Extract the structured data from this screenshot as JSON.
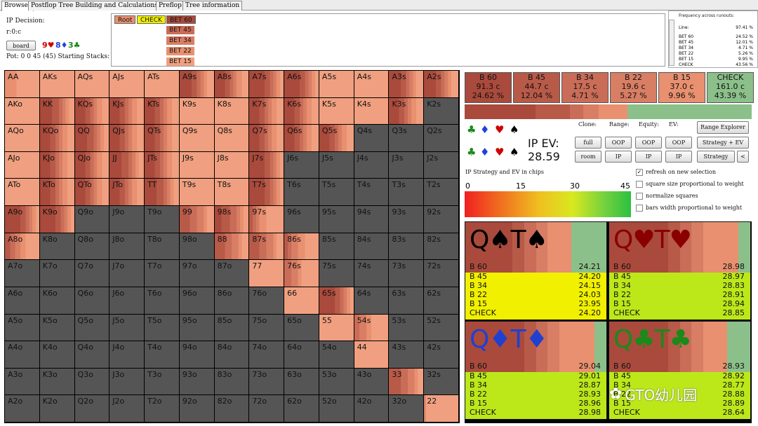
{
  "tabs": [
    "Browser",
    "Postflop Tree Building and Calculations",
    "Preflop",
    "Tree information"
  ],
  "decision": {
    "title": "IP Decision:",
    "runout": "r:0:c",
    "board_button": "board",
    "board_cards": [
      {
        "text": "9♥",
        "color": "#d00000"
      },
      {
        "text": "8♦",
        "color": "#2040e0"
      },
      {
        "text": "3♣",
        "color": "#1a8a1a"
      }
    ],
    "pot_line": "Pot: 0 0 45 (45) Starting Stacks:"
  },
  "tree": {
    "root": "Root",
    "check": "CHECK",
    "bets": [
      "BET 60",
      "BET 45",
      "BET 34",
      "BET 22",
      "BET 15"
    ]
  },
  "frequency": {
    "title": "Frequency across runouts:",
    "line_label": "Line:",
    "line_value": "97.41 %",
    "rows": [
      {
        "label": "BET 60",
        "value": "24.52 %"
      },
      {
        "label": "BET 45",
        "value": "12.01 %"
      },
      {
        "label": "BET 34",
        "value": "4.71 %"
      },
      {
        "label": "BET 22",
        "value": "5.26 %"
      },
      {
        "label": "BET 15",
        "value": "9.95 %"
      },
      {
        "label": "CHECK",
        "value": "43.56 %"
      }
    ]
  },
  "actions": [
    {
      "name": "B 60",
      "combos": "91.3 c",
      "pct": "24.62 %",
      "color": "#a94a3c",
      "freq": 24.62
    },
    {
      "name": "B 45",
      "combos": "44.7 c",
      "pct": "12.04 %",
      "color": "#b85a48",
      "freq": 12.04
    },
    {
      "name": "B 34",
      "combos": "17.5 c",
      "pct": "4.71 %",
      "color": "#c96c58",
      "freq": 4.71
    },
    {
      "name": "B 22",
      "combos": "19.6 c",
      "pct": "5.27 %",
      "color": "#d87e64",
      "freq": 5.27
    },
    {
      "name": "B 15",
      "combos": "37.0 c",
      "pct": "9.96 %",
      "color": "#e8906f",
      "freq": 9.96
    },
    {
      "name": "CHECK",
      "combos": "161.0 c",
      "pct": "43.39 %",
      "color": "#8cc08a",
      "freq": 43.39
    }
  ],
  "controls": {
    "ip_ev_label": "IP EV:",
    "ip_ev_value": "28.59",
    "clone_label": "Clone:",
    "range_label": "Range:",
    "equity_label": "Equity:",
    "ev_label": "EV:",
    "buttons": {
      "full": "full",
      "room": "room",
      "oop": "OOP",
      "ip": "IP",
      "range_explorer": "Range Explorer",
      "strategy_ev": "Strategy + EV",
      "strategy": "Strategy",
      "arrow": "<"
    },
    "suits": [
      {
        "s": "♣",
        "c": "#1a8a1a"
      },
      {
        "s": "♦",
        "c": "#2040e0"
      },
      {
        "s": "♥",
        "c": "#d00000"
      },
      {
        "s": "♠",
        "c": "#000000"
      }
    ],
    "scale_title": "IP Strategy and EV in chips",
    "scale_ticks": [
      "0",
      "15",
      "30",
      "45"
    ],
    "checkboxes": [
      {
        "label": "refresh on new selection",
        "checked": true
      },
      {
        "label": "square size proportional to weight",
        "checked": false
      },
      {
        "label": "normalize squares",
        "checked": false
      },
      {
        "label": "bars width proportional to weight",
        "checked": false
      }
    ]
  },
  "grid": {
    "ranks": [
      "A",
      "K",
      "Q",
      "J",
      "T",
      "9",
      "8",
      "7",
      "6",
      "5",
      "4",
      "3",
      "2"
    ],
    "cells": {
      "AA": [
        0.0,
        0.0,
        0.0,
        0.0,
        0.0,
        0.25,
        0.5
      ],
      "AKs": [
        0.0,
        0.0,
        0.0,
        0.0,
        0.0,
        0.0,
        0.9
      ],
      "AQs": [
        0.0,
        0.0,
        0.0,
        0.0,
        0.0,
        0.0,
        0.9
      ],
      "AJs": [
        0.0,
        0.0,
        0.0,
        0.0,
        0.0,
        0.0,
        0.9
      ],
      "ATs": [
        0.0,
        0.0,
        0.0,
        0.0,
        0.0,
        0.0,
        0.9
      ],
      "A9s": [
        0.0,
        0.35,
        0.15,
        0.1,
        0.1,
        0.1,
        0.2
      ],
      "A8s": [
        0.0,
        0.3,
        0.15,
        0.1,
        0.1,
        0.15,
        0.2
      ],
      "A7s": [
        0.0,
        0.45,
        0.15,
        0.1,
        0.1,
        0.1,
        0.1
      ],
      "A6s": [
        0.0,
        0.45,
        0.15,
        0.1,
        0.1,
        0.1,
        0.1
      ],
      "A5s": [
        0.0,
        0.0,
        0.0,
        0.0,
        0.0,
        0.0,
        0.9
      ],
      "A4s": [
        0.0,
        0.0,
        0.0,
        0.0,
        0.0,
        0.0,
        0.9
      ],
      "A3s": [
        0.0,
        0.35,
        0.15,
        0.1,
        0.1,
        0.1,
        0.2
      ],
      "A2s": [
        0.0,
        0.35,
        0.15,
        0.1,
        0.1,
        0.1,
        0.2
      ],
      "AKo": [
        0.0,
        0.0,
        0.0,
        0.0,
        0.0,
        0.0,
        0.9
      ],
      "KK": [
        0.0,
        0.35,
        0.2,
        0.1,
        0.1,
        0.1,
        0.15
      ],
      "KQs": [
        0.0,
        0.3,
        0.15,
        0.1,
        0.1,
        0.15,
        0.2
      ],
      "KJs": [
        0.0,
        0.3,
        0.15,
        0.1,
        0.1,
        0.15,
        0.2
      ],
      "KTs": [
        0.0,
        0.3,
        0.15,
        0.1,
        0.1,
        0.15,
        0.2
      ],
      "K9s": [
        0.0,
        0.0,
        0.0,
        0.0,
        0.0,
        0.0,
        0.9
      ],
      "K8s": [
        0.0,
        0.0,
        0.0,
        0.0,
        0.0,
        0.0,
        0.9
      ],
      "K7s": [
        0.0,
        0.3,
        0.15,
        0.1,
        0.1,
        0.15,
        0.2
      ],
      "K6s": [
        0.0,
        0.3,
        0.15,
        0.1,
        0.1,
        0.15,
        0.2
      ],
      "K5s": [
        0.0,
        0.0,
        0.0,
        0.0,
        0.0,
        0.0,
        0.9
      ],
      "K4s": [
        0.0,
        0.0,
        0.0,
        0.0,
        0.0,
        0.0,
        0.9
      ],
      "K3s": [
        0.0,
        0.3,
        0.15,
        0.1,
        0.1,
        0.15,
        0.2
      ],
      "K2s": [
        0.1,
        0.0,
        0.0,
        0.0,
        0.0,
        0.0,
        0.0
      ],
      "AQo": [
        0.0,
        0.0,
        0.0,
        0.0,
        0.0,
        0.0,
        0.9
      ],
      "KQo": [
        0.0,
        0.3,
        0.15,
        0.1,
        0.1,
        0.15,
        0.2
      ],
      "QQ": [
        0.0,
        0.35,
        0.2,
        0.1,
        0.1,
        0.1,
        0.15
      ],
      "QJs": [
        0.0,
        0.3,
        0.15,
        0.1,
        0.1,
        0.15,
        0.2
      ],
      "QTs": [
        0.0,
        0.3,
        0.15,
        0.1,
        0.1,
        0.15,
        0.2
      ],
      "Q9s": [
        0.0,
        0.0,
        0.0,
        0.0,
        0.0,
        0.0,
        0.9
      ],
      "Q8s": [
        0.0,
        0.0,
        0.0,
        0.0,
        0.0,
        0.0,
        0.9
      ],
      "Q7s": [
        0.0,
        0.3,
        0.15,
        0.1,
        0.1,
        0.15,
        0.2
      ],
      "Q6s": [
        0.0,
        0.3,
        0.15,
        0.1,
        0.1,
        0.15,
        0.2
      ],
      "Q5s": [
        0.0,
        0.3,
        0.15,
        0.1,
        0.1,
        0.15,
        0.2
      ],
      "AJo": [
        0.0,
        0.0,
        0.0,
        0.0,
        0.0,
        0.0,
        0.9
      ],
      "KJo": [
        0.0,
        0.3,
        0.15,
        0.1,
        0.1,
        0.15,
        0.2
      ],
      "QJo": [
        0.0,
        0.3,
        0.15,
        0.1,
        0.1,
        0.15,
        0.2
      ],
      "JJ": [
        0.0,
        0.35,
        0.2,
        0.1,
        0.1,
        0.1,
        0.15
      ],
      "JTs": [
        0.0,
        0.3,
        0.15,
        0.1,
        0.1,
        0.15,
        0.2
      ],
      "J9s": [
        0.0,
        0.0,
        0.0,
        0.0,
        0.0,
        0.0,
        0.9
      ],
      "J8s": [
        0.0,
        0.0,
        0.0,
        0.0,
        0.0,
        0.0,
        0.9
      ],
      "J7s": [
        0.0,
        0.45,
        0.15,
        0.1,
        0.1,
        0.1,
        0.1
      ],
      "ATo": [
        0.0,
        0.0,
        0.0,
        0.0,
        0.0,
        0.0,
        0.9
      ],
      "KTo": [
        0.0,
        0.3,
        0.15,
        0.1,
        0.1,
        0.15,
        0.2
      ],
      "QTo": [
        0.0,
        0.3,
        0.15,
        0.1,
        0.1,
        0.15,
        0.2
      ],
      "JTo": [
        0.0,
        0.3,
        0.15,
        0.1,
        0.1,
        0.15,
        0.2
      ],
      "TT": [
        0.0,
        0.35,
        0.2,
        0.1,
        0.1,
        0.1,
        0.15
      ],
      "T9s": [
        0.0,
        0.0,
        0.0,
        0.0,
        0.0,
        0.0,
        0.9
      ],
      "T8s": [
        0.0,
        0.0,
        0.0,
        0.0,
        0.0,
        0.0,
        0.9
      ],
      "T7s": [
        0.0,
        0.45,
        0.15,
        0.1,
        0.1,
        0.1,
        0.1
      ],
      "A9o": [
        0.0,
        0.45,
        0.15,
        0.1,
        0.1,
        0.1,
        0.1
      ],
      "K9o": [
        0.0,
        0.45,
        0.15,
        0.1,
        0.1,
        0.1,
        0.1
      ],
      "99": [
        0.0,
        0.0,
        0.3,
        0.2,
        0.2,
        0.1,
        0.2
      ],
      "98s": [
        0.0,
        0.2,
        0.25,
        0.2,
        0.1,
        0.1,
        0.15
      ],
      "97s": [
        0.0,
        0.0,
        0.1,
        0.1,
        0.1,
        0.2,
        0.5
      ],
      "A8o": [
        0.0,
        0.0,
        0.15,
        0.15,
        0.15,
        0.15,
        0.4
      ],
      "88": [
        0.0,
        0.0,
        0.3,
        0.2,
        0.2,
        0.1,
        0.2
      ],
      "87s": [
        0.0,
        0.0,
        0.3,
        0.2,
        0.2,
        0.1,
        0.2
      ],
      "86s": [
        0.0,
        0.0,
        0.1,
        0.1,
        0.2,
        0.2,
        0.4
      ],
      "77": [
        0.0,
        0.0,
        0.0,
        0.0,
        0.0,
        0.0,
        0.9
      ],
      "76s": [
        0.0,
        0.0,
        0.0,
        0.2,
        0.2,
        0.1,
        0.5
      ],
      "66": [
        0.0,
        0.0,
        0.0,
        0.0,
        0.0,
        0.0,
        0.9
      ],
      "65s": [
        0.0,
        0.45,
        0.15,
        0.1,
        0.1,
        0.1,
        0.1
      ],
      "55": [
        0.0,
        0.0,
        0.0,
        0.0,
        0.0,
        0.0,
        0.9
      ],
      "54s": [
        0.0,
        0.0,
        0.0,
        0.15,
        0.2,
        0.15,
        0.5
      ],
      "44": [
        0.0,
        0.0,
        0.0,
        0.0,
        0.0,
        0.0,
        0.9
      ],
      "33": [
        0.0,
        0.0,
        0.35,
        0.2,
        0.2,
        0.1,
        0.15
      ],
      "22": [
        0.0,
        0.0,
        0.0,
        0.0,
        0.05,
        0.0,
        0.85
      ]
    }
  },
  "hands": [
    {
      "cards": "Q♠T♠",
      "color": "#000000",
      "cardbg": [
        "#a94a3c",
        "#a94a3c",
        "#a94a3c",
        "#a94a3c",
        "#b85a48",
        "#c96c58",
        "#d87e64",
        "#e8906f",
        "#e8906f",
        "#8cc08a",
        "#8cc08a",
        "#8cc08a"
      ],
      "best": "B 60",
      "best_ev": "24.21",
      "rowbg": "#f0f000",
      "rows": [
        {
          "a": "B 45",
          "v": "24.20"
        },
        {
          "a": "B 34",
          "v": "24.15"
        },
        {
          "a": "B 22",
          "v": "24.03"
        },
        {
          "a": "B 15",
          "v": "23.95"
        },
        {
          "a": "CHECK",
          "v": "24.20"
        }
      ]
    },
    {
      "cards": "Q♥T♥",
      "color": "#8a0000",
      "cardbg": [
        "#a94a3c",
        "#a94a3c",
        "#a94a3c",
        "#a94a3c",
        "#a94a3c",
        "#b85a48",
        "#c96c58",
        "#d87e64",
        "#e8906f",
        "#e8906f",
        "#e8906f",
        "#8cc08a"
      ],
      "best": "B 60",
      "best_ev": "28.98",
      "rowbg": "#bce81a",
      "rows": [
        {
          "a": "B 45",
          "v": "28.97"
        },
        {
          "a": "B 34",
          "v": "28.83"
        },
        {
          "a": "B 22",
          "v": "28.91"
        },
        {
          "a": "B 15",
          "v": "28.94"
        },
        {
          "a": "CHECK",
          "v": "28.85"
        }
      ]
    },
    {
      "cards": "Q♦T♦",
      "color": "#2040d0",
      "cardbg": [
        "#a94a3c",
        "#a94a3c",
        "#a94a3c",
        "#a94a3c",
        "#a94a3c",
        "#b85a48",
        "#c96c58",
        "#d87e64",
        "#e8906f",
        "#e8906f",
        "#e8906f",
        "#8cc08a"
      ],
      "best": "B 60",
      "best_ev": "29.04",
      "rowbg": "#bce81a",
      "rows": [
        {
          "a": "B 45",
          "v": "29.01"
        },
        {
          "a": "B 34",
          "v": "28.87"
        },
        {
          "a": "B 22",
          "v": "28.93"
        },
        {
          "a": "B 15",
          "v": "28.96"
        },
        {
          "a": "CHECK",
          "v": "28.98"
        }
      ]
    },
    {
      "cards": "Q♣T♣",
      "color": "#1a8a1a",
      "cardbg": [
        "#a94a3c",
        "#a94a3c",
        "#a94a3c",
        "#a94a3c",
        "#a94a3c",
        "#b85a48",
        "#c96c58",
        "#d87e64",
        "#e8906f",
        "#e8906f",
        "#8cc08a",
        "#8cc08a"
      ],
      "best": "B 60",
      "best_ev": "28.93",
      "rowbg": "#bce81a",
      "rows": [
        {
          "a": "B 45",
          "v": "28.92"
        },
        {
          "a": "B 34",
          "v": "28.77"
        },
        {
          "a": "B 22",
          "v": "28.88"
        },
        {
          "a": "B 15",
          "v": "28.89"
        },
        {
          "a": "CHECK",
          "v": "28.64"
        }
      ]
    }
  ],
  "watermark": "GTO幼儿园"
}
